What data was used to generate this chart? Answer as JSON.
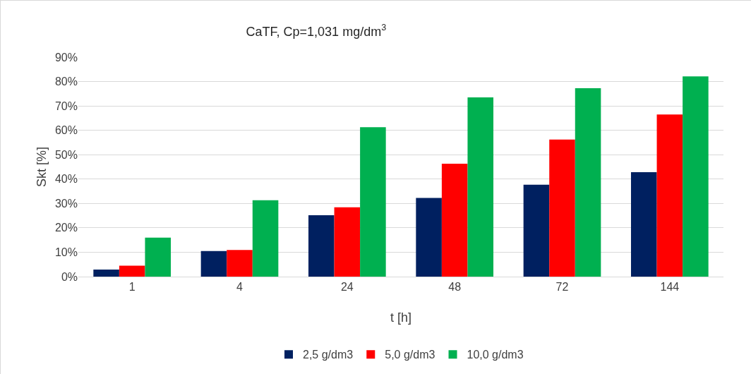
{
  "chart_data": {
    "type": "bar",
    "title": "CaTF, Cp=1,031 mg/dm$^{3}$",
    "xlabel": "t [h]",
    "ylabel": "Skt [%]",
    "categories": [
      "1",
      "4",
      "24",
      "48",
      "72",
      "144"
    ],
    "series": [
      {
        "name": "2,5 g/dm3",
        "color": "#002060",
        "values": [
          2.9,
          10.5,
          25.2,
          32.3,
          37.7,
          42.8
        ]
      },
      {
        "name": "5,0 g/dm3",
        "color": "#ff0000",
        "values": [
          4.5,
          10.9,
          28.4,
          46.3,
          56.2,
          66.5
        ]
      },
      {
        "name": "10,0 g/dm3",
        "color": "#00b050",
        "values": [
          16,
          31.3,
          61.3,
          73.5,
          77.3,
          82.1
        ]
      }
    ],
    "ylim": [
      0,
      90
    ],
    "yticks": [
      {
        "value": 0,
        "label": "0%"
      },
      {
        "value": 10,
        "label": "10%"
      },
      {
        "value": 20,
        "label": "20%"
      },
      {
        "value": 30,
        "label": "30%"
      },
      {
        "value": 40,
        "label": "40%"
      },
      {
        "value": 50,
        "label": "50%"
      },
      {
        "value": 60,
        "label": "60%"
      },
      {
        "value": 70,
        "label": "70%"
      },
      {
        "value": 80,
        "label": "80%"
      },
      {
        "value": 90,
        "label": "90%"
      }
    ],
    "grid": "y",
    "legend": "bottom"
  }
}
